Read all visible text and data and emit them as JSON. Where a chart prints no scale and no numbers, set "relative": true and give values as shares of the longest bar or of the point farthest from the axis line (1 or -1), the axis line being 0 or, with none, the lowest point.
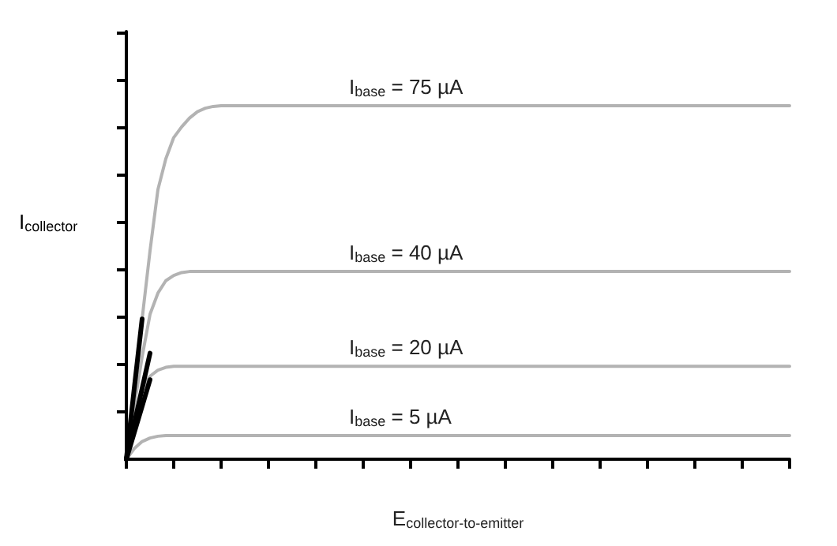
{
  "chart_data": {
    "type": "line",
    "relative": true,
    "xlabel": "E$_{collector-to-emitter}$",
    "ylabel": "I$_{collector}$",
    "legend": false,
    "grid": false,
    "line_style": "solid",
    "categories": [
      null,
      null,
      null,
      null,
      null,
      null,
      null,
      null,
      null,
      null,
      null,
      null,
      null,
      null,
      null,
      null,
      null,
      null,
      null,
      null,
      null,
      null,
      null,
      null,
      null,
      null,
      null,
      null,
      null,
      null,
      null,
      null,
      null,
      null,
      null,
      null,
      null,
      null,
      null,
      null,
      null,
      null,
      null,
      null,
      null,
      null,
      null,
      null,
      null,
      null,
      null,
      null,
      null,
      null,
      null,
      null,
      null,
      null,
      null,
      null,
      null,
      null,
      null,
      null,
      null,
      null,
      null,
      null,
      null,
      null,
      null,
      null,
      null,
      null,
      null,
      null,
      null,
      null,
      null,
      null,
      null,
      null,
      null,
      null,
      null
    ],
    "series": [
      {
        "name": "I$_{base}$ = 75 µA",
        "color": "#b3b3b3",
        "values": [
          0,
          0.2,
          0.397,
          0.59,
          0.763,
          0.85,
          0.91,
          0.94,
          0.965,
          0.983,
          0.993,
          0.998,
          1,
          1,
          1,
          1,
          1,
          1,
          1,
          1,
          1,
          1,
          1,
          1,
          1,
          1,
          1,
          1,
          1,
          1,
          1,
          1,
          1,
          1,
          1,
          1,
          1,
          1,
          1,
          1,
          1,
          1,
          1,
          1,
          1,
          1,
          1,
          1,
          1,
          1,
          1,
          1,
          1,
          1,
          1,
          1,
          1,
          1,
          1,
          1,
          1,
          1,
          1,
          1,
          1,
          1,
          1,
          1,
          1,
          1,
          1,
          1,
          1,
          1,
          1,
          1,
          1,
          1,
          1,
          1,
          1,
          1,
          1,
          1,
          1
        ]
      },
      {
        "name": "I$_{base}$ = 40 µA",
        "color": "#b3b3b3",
        "values": [
          0,
          0.15,
          0.29,
          0.41,
          0.47,
          0.505,
          0.52,
          0.528,
          0.531,
          0.531,
          0.531,
          0.531,
          0.531,
          0.531,
          0.531,
          0.531,
          0.531,
          0.531,
          0.531,
          0.531,
          0.531,
          0.531,
          0.531,
          0.531,
          0.531,
          0.531,
          0.531,
          0.531,
          0.531,
          0.531,
          0.531,
          0.531,
          0.531,
          0.531,
          0.531,
          0.531,
          0.531,
          0.531,
          0.531,
          0.531,
          0.531,
          0.531,
          0.531,
          0.531,
          0.531,
          0.531,
          0.531,
          0.531,
          0.531,
          0.531,
          0.531,
          0.531,
          0.531,
          0.531,
          0.531,
          0.531,
          0.531,
          0.531,
          0.531,
          0.531,
          0.531,
          0.531,
          0.531,
          0.531,
          0.531,
          0.531,
          0.531,
          0.531,
          0.531,
          0.531,
          0.531,
          0.531,
          0.531,
          0.531,
          0.531,
          0.531,
          0.531,
          0.531,
          0.531,
          0.531,
          0.531,
          0.531,
          0.531,
          0.531,
          0.531
        ]
      },
      {
        "name": "I$_{base}$ = 20 µA",
        "color": "#b3b3b3",
        "values": [
          0,
          0.11,
          0.2,
          0.235,
          0.252,
          0.26,
          0.263,
          0.263,
          0.263,
          0.263,
          0.263,
          0.263,
          0.263,
          0.263,
          0.263,
          0.263,
          0.263,
          0.263,
          0.263,
          0.263,
          0.263,
          0.263,
          0.263,
          0.263,
          0.263,
          0.263,
          0.263,
          0.263,
          0.263,
          0.263,
          0.263,
          0.263,
          0.263,
          0.263,
          0.263,
          0.263,
          0.263,
          0.263,
          0.263,
          0.263,
          0.263,
          0.263,
          0.263,
          0.263,
          0.263,
          0.263,
          0.263,
          0.263,
          0.263,
          0.263,
          0.263,
          0.263,
          0.263,
          0.263,
          0.263,
          0.263,
          0.263,
          0.263,
          0.263,
          0.263,
          0.263,
          0.263,
          0.263,
          0.263,
          0.263,
          0.263,
          0.263,
          0.263,
          0.263,
          0.263,
          0.263,
          0.263,
          0.263,
          0.263,
          0.263,
          0.263,
          0.263,
          0.263,
          0.263,
          0.263,
          0.263,
          0.263,
          0.263,
          0.263,
          0.263
        ]
      },
      {
        "name": "I$_{base}$ = 5 µA",
        "color": "#b3b3b3",
        "values": [
          0,
          0.03,
          0.05,
          0.06,
          0.065,
          0.067,
          0.067,
          0.067,
          0.067,
          0.067,
          0.067,
          0.067,
          0.067,
          0.067,
          0.067,
          0.067,
          0.067,
          0.067,
          0.067,
          0.067,
          0.067,
          0.067,
          0.067,
          0.067,
          0.067,
          0.067,
          0.067,
          0.067,
          0.067,
          0.067,
          0.067,
          0.067,
          0.067,
          0.067,
          0.067,
          0.067,
          0.067,
          0.067,
          0.067,
          0.067,
          0.067,
          0.067,
          0.067,
          0.067,
          0.067,
          0.067,
          0.067,
          0.067,
          0.067,
          0.067,
          0.067,
          0.067,
          0.067,
          0.067,
          0.067,
          0.067,
          0.067,
          0.067,
          0.067,
          0.067,
          0.067,
          0.067,
          0.067,
          0.067,
          0.067,
          0.067,
          0.067,
          0.067,
          0.067,
          0.067,
          0.067,
          0.067,
          0.067,
          0.067,
          0.067,
          0.067,
          0.067,
          0.067,
          0.067,
          0.067,
          0.067,
          0.067,
          0.067,
          0.067,
          0.067
        ]
      },
      {
        "color": "#000000",
        "values": [
          0,
          0.2,
          0.397,
          null,
          null,
          null,
          null,
          null,
          null,
          null,
          null,
          null,
          null,
          null,
          null,
          null,
          null,
          null,
          null,
          null,
          null,
          null,
          null,
          null,
          null,
          null,
          null,
          null,
          null,
          null,
          null,
          null,
          null,
          null,
          null,
          null,
          null,
          null,
          null,
          null,
          null,
          null,
          null,
          null,
          null,
          null,
          null,
          null,
          null,
          null,
          null,
          null,
          null,
          null,
          null,
          null,
          null,
          null,
          null,
          null,
          null,
          null,
          null,
          null,
          null,
          null,
          null,
          null,
          null,
          null,
          null,
          null,
          null,
          null,
          null,
          null,
          null,
          null,
          null,
          null,
          null,
          null,
          null,
          null,
          null
        ]
      },
      {
        "color": "#000000",
        "values": [
          0,
          0.1,
          0.2,
          0.3,
          null,
          null,
          null,
          null,
          null,
          null,
          null,
          null,
          null,
          null,
          null,
          null,
          null,
          null,
          null,
          null,
          null,
          null,
          null,
          null,
          null,
          null,
          null,
          null,
          null,
          null,
          null,
          null,
          null,
          null,
          null,
          null,
          null,
          null,
          null,
          null,
          null,
          null,
          null,
          null,
          null,
          null,
          null,
          null,
          null,
          null,
          null,
          null,
          null,
          null,
          null,
          null,
          null,
          null,
          null,
          null,
          null,
          null,
          null,
          null,
          null,
          null,
          null,
          null,
          null,
          null,
          null,
          null,
          null,
          null,
          null,
          null,
          null,
          null,
          null,
          null,
          null,
          null,
          null,
          null,
          null
        ]
      },
      {
        "color": "#000000",
        "values": [
          0,
          0.075,
          0.15,
          0.225,
          null,
          null,
          null,
          null,
          null,
          null,
          null,
          null,
          null,
          null,
          null,
          null,
          null,
          null,
          null,
          null,
          null,
          null,
          null,
          null,
          null,
          null,
          null,
          null,
          null,
          null,
          null,
          null,
          null,
          null,
          null,
          null,
          null,
          null,
          null,
          null,
          null,
          null,
          null,
          null,
          null,
          null,
          null,
          null,
          null,
          null,
          null,
          null,
          null,
          null,
          null,
          null,
          null,
          null,
          null,
          null,
          null,
          null,
          null,
          null,
          null,
          null,
          null,
          null,
          null,
          null,
          null,
          null,
          null,
          null,
          null,
          null,
          null,
          null,
          null,
          null,
          null,
          null,
          null,
          null,
          null
        ]
      }
    ]
  }
}
